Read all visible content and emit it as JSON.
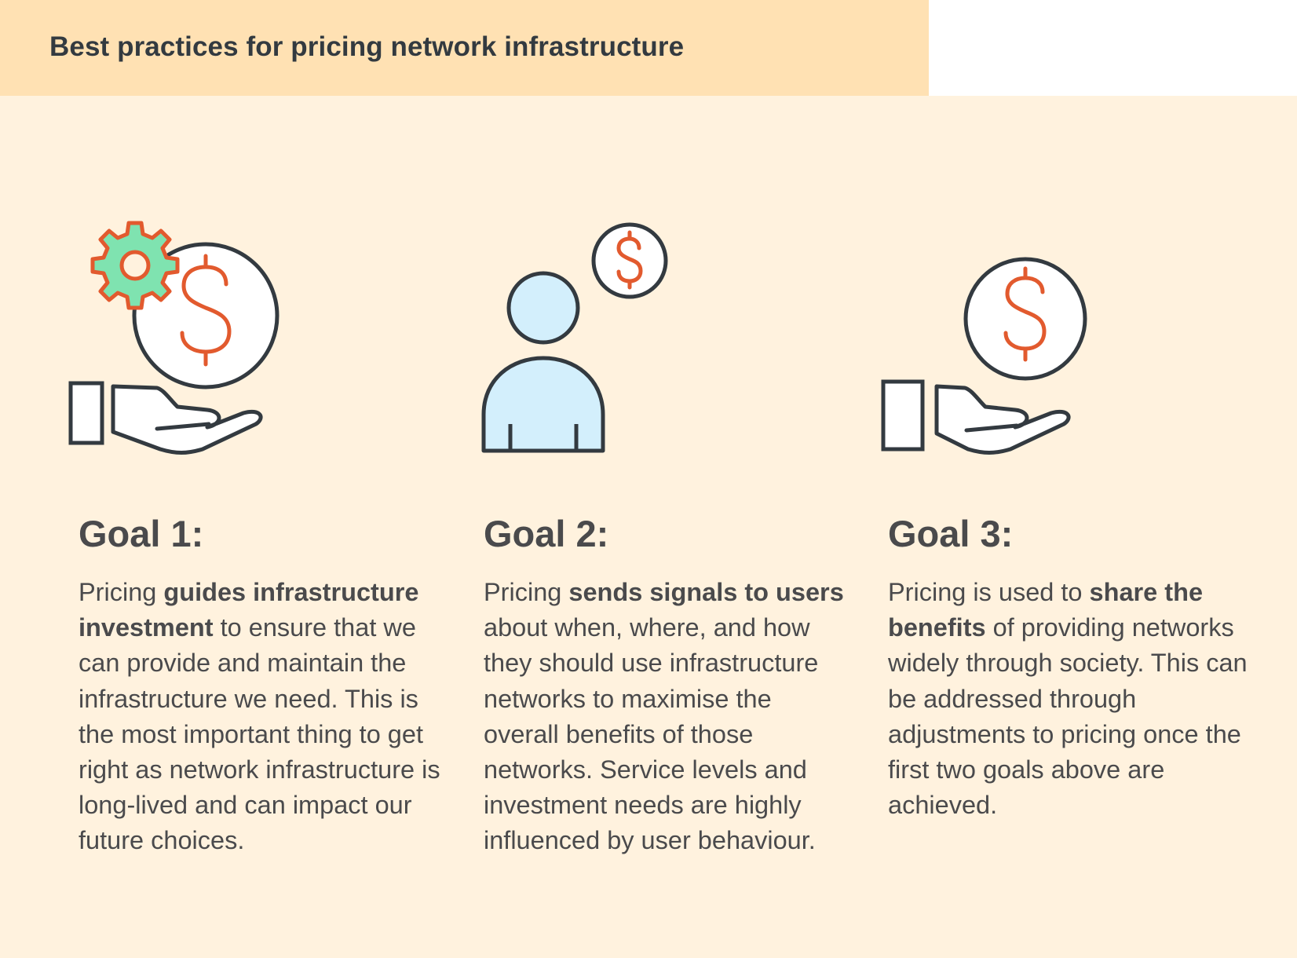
{
  "header": {
    "title": "Best practices for pricing network infrastructure"
  },
  "colors": {
    "header_bg": "#ffe1b3",
    "content_bg": "#fff2de",
    "outline": "#333a40",
    "dollar": "#e25a2e",
    "gear_fill": "#7fe3b0",
    "person_fill": "#d3effc"
  },
  "goals": [
    {
      "icon": "hand-coin-gear-icon",
      "title": "Goal 1:",
      "text": [
        {
          "t": "Pricing ",
          "b": false
        },
        {
          "t": "guides infrastructure investment",
          "b": true
        },
        {
          "t": " to ensure that we can provide and maintain the infrastructure we need. This is the most important thing to get right as network infrastructure is long-lived and can impact our future choices.",
          "b": false
        }
      ]
    },
    {
      "icon": "person-coin-icon",
      "title": "Goal 2:",
      "text": [
        {
          "t": "Pricing ",
          "b": false
        },
        {
          "t": "sends signals to users",
          "b": true
        },
        {
          "t": " about when, where, and how they should use infrastructure networks to maximise the overall benefits of those networks. Service levels and investment needs are highly influenced by user behaviour.",
          "b": false
        }
      ]
    },
    {
      "icon": "hand-coin-icon",
      "title": "Goal 3:",
      "text": [
        {
          "t": "Pricing is used to ",
          "b": false
        },
        {
          "t": "share the benefits",
          "b": true
        },
        {
          "t": " of providing networks widely through society. This can be addressed through adjustments to pricing once the first two goals above are achieved.",
          "b": false
        }
      ]
    }
  ]
}
